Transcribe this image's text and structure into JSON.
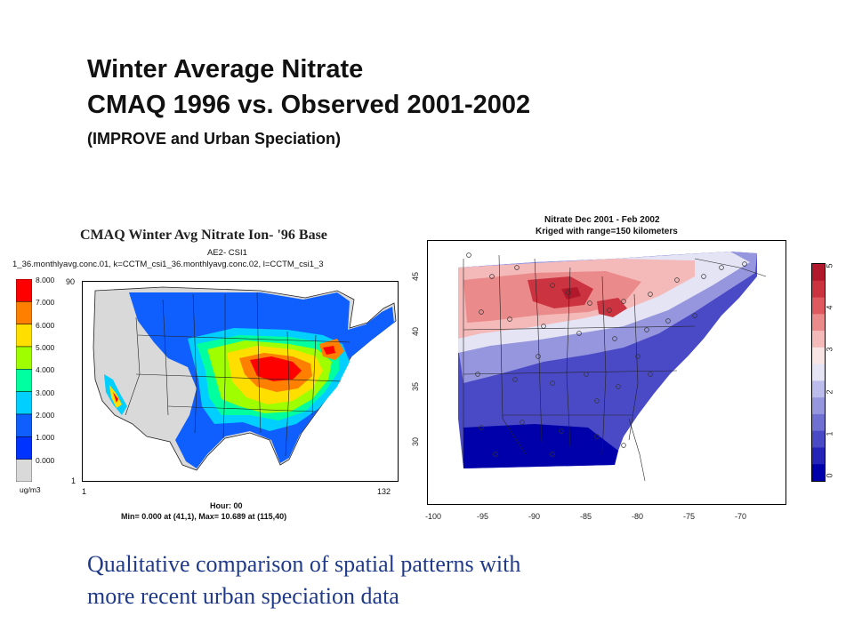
{
  "slide": {
    "title_line1": "Winter Average Nitrate",
    "title_line2": "CMAQ 1996 vs. Observed 2001-2002",
    "title_line3": "(IMPROVE and Urban Speciation)",
    "caption_line1": "Qualitative comparison of spatial patterns with",
    "caption_line2": "more recent urban speciation data"
  },
  "left_map": {
    "title": "CMAQ Winter Avg Nitrate Ion- '96 Base",
    "subtitle1": "AE2- CSI1",
    "subtitle2": "1_36.monthlyavg.conc.01, k=CCTM_csi1_36.monthlyavg.conc.02, l=CCTM_csi1_3",
    "legend_labels": [
      "8.000",
      "7.000",
      "6.000",
      "5.000",
      "4.000",
      "3.000",
      "2.000",
      "1.000",
      "0.000"
    ],
    "legend_colors": [
      "#ff0000",
      "#ff7f00",
      "#ffdf00",
      "#9fff00",
      "#00ff9f",
      "#00cfff",
      "#0f5fff",
      "#0033ff",
      "#d9d9d9"
    ],
    "unit": "ug/m3",
    "y_top": "90",
    "y_bottom": "1",
    "x_left": "1",
    "x_right": "132",
    "hour": "Hour: 00",
    "minmax": "Min=  0.000 at (41,1), Max=  10.689 at (115,40)"
  },
  "right_map": {
    "title1": "Nitrate Dec 2001 - Feb 2002",
    "title2": "Kriged with range=150 kilometers",
    "x_ticks": [
      "-100",
      "-95",
      "-90",
      "-85",
      "-80",
      "-75",
      "-70"
    ],
    "y_ticks": [
      "45",
      "40",
      "35",
      "30"
    ],
    "colorbar_ticks": [
      "5",
      "4",
      "3",
      "2",
      "1",
      "0"
    ],
    "colorbar_colors": [
      "#b2182b",
      "#cc3340",
      "#de5a60",
      "#eb8a8a",
      "#f4b9b9",
      "#f7e4e4",
      "#e4e4f4",
      "#bcbcec",
      "#9696de",
      "#7070d2",
      "#4a4ac6",
      "#2424b9",
      "#0000aa"
    ]
  }
}
